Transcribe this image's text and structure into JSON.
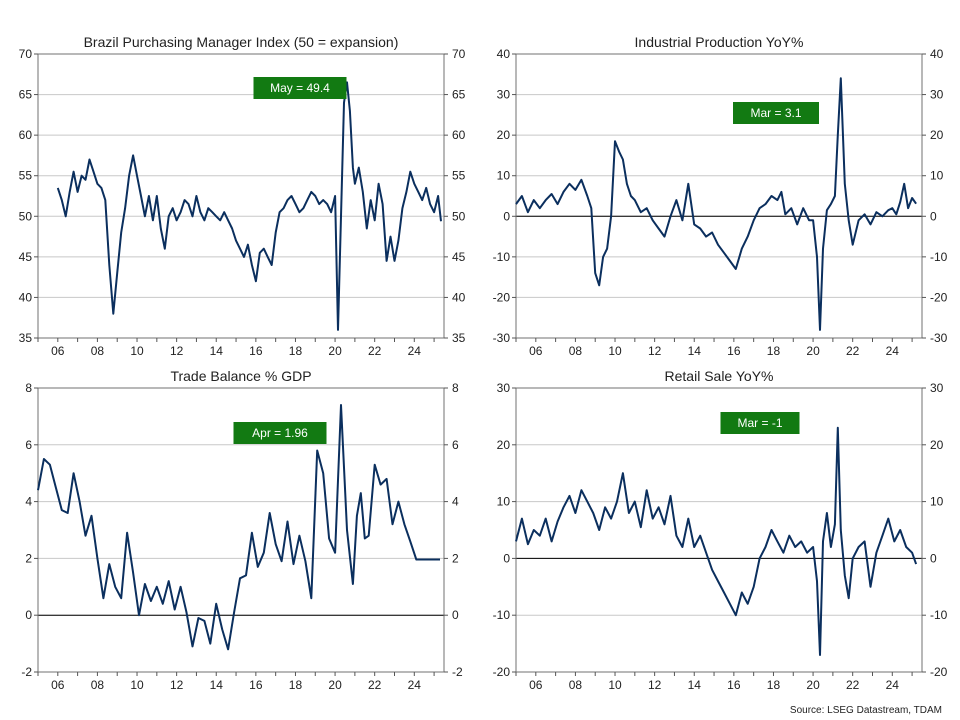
{
  "source": "Source: LSEG Datastream, TDAM",
  "style": {
    "line_color": "#0b2f5e",
    "grid_color": "#c8c8c8",
    "badge_color": "#127a12",
    "zero_line_color": "#000000"
  },
  "chart_data": [
    {
      "type": "line",
      "title": "Brazil Purchasing Manager Index (50 = expansion)",
      "x_ticks": [
        "06",
        "08",
        "10",
        "12",
        "14",
        "16",
        "18",
        "20",
        "22",
        "24"
      ],
      "x_range": [
        2005.0,
        2025.5
      ],
      "ylim": [
        35,
        70
      ],
      "y_ticks": [
        35,
        40,
        45,
        50,
        55,
        60,
        65,
        70
      ],
      "zero_line": false,
      "annotation": "May  = 49.4",
      "series": [
        {
          "x": [
            2006.0,
            2006.2,
            2006.4,
            2006.6,
            2006.8,
            2007.0,
            2007.2,
            2007.4,
            2007.6,
            2007.8,
            2008.0,
            2008.2,
            2008.4,
            2008.6,
            2008.8,
            2009.0,
            2009.2,
            2009.4,
            2009.6,
            2009.8,
            2010.0,
            2010.2,
            2010.4,
            2010.6,
            2010.8,
            2011.0,
            2011.2,
            2011.4,
            2011.6,
            2011.8,
            2012.0,
            2012.2,
            2012.4,
            2012.6,
            2012.8,
            2013.0,
            2013.2,
            2013.4,
            2013.6,
            2013.8,
            2014.0,
            2014.2,
            2014.4,
            2014.6,
            2014.8,
            2015.0,
            2015.2,
            2015.4,
            2015.6,
            2015.8,
            2016.0,
            2016.2,
            2016.4,
            2016.6,
            2016.8,
            2017.0,
            2017.2,
            2017.4,
            2017.6,
            2017.8,
            2018.0,
            2018.2,
            2018.4,
            2018.6,
            2018.8,
            2019.0,
            2019.2,
            2019.4,
            2019.6,
            2019.8,
            2020.0,
            2020.15,
            2020.3,
            2020.45,
            2020.6,
            2020.75,
            2020.9,
            2021.0,
            2021.2,
            2021.4,
            2021.6,
            2021.8,
            2022.0,
            2022.2,
            2022.4,
            2022.6,
            2022.8,
            2023.0,
            2023.2,
            2023.4,
            2023.6,
            2023.8,
            2024.0,
            2024.2,
            2024.4,
            2024.6,
            2024.8,
            2025.0,
            2025.2,
            2025.35
          ],
          "values": [
            53.5,
            52.0,
            50.0,
            53.0,
            55.5,
            53.0,
            55.0,
            54.5,
            57.0,
            55.5,
            54.0,
            53.5,
            52.0,
            44.0,
            38.0,
            43.0,
            48.0,
            51.0,
            55.0,
            57.5,
            55.0,
            52.5,
            50.0,
            52.5,
            49.5,
            52.5,
            48.5,
            46.0,
            50.0,
            51.0,
            49.5,
            50.5,
            52.0,
            51.5,
            50.0,
            52.5,
            50.5,
            49.5,
            51.0,
            50.5,
            50.0,
            49.5,
            50.5,
            49.5,
            48.5,
            47.0,
            46.0,
            45.0,
            46.5,
            44.0,
            42.0,
            45.5,
            46.0,
            45.0,
            44.0,
            48.0,
            50.5,
            51.0,
            52.0,
            52.5,
            51.5,
            50.5,
            51.0,
            52.0,
            53.0,
            52.5,
            51.5,
            52.0,
            51.5,
            50.5,
            52.5,
            36.0,
            50.0,
            64.0,
            66.5,
            63.0,
            56.0,
            54.0,
            56.0,
            53.0,
            48.5,
            52.0,
            49.5,
            54.0,
            51.5,
            44.5,
            47.5,
            44.5,
            47.0,
            51.0,
            53.0,
            55.5,
            54.0,
            53.0,
            52.0,
            53.5,
            51.5,
            50.5,
            52.5,
            49.4
          ]
        }
      ]
    },
    {
      "type": "line",
      "title": "Industrial Production YoY%",
      "x_ticks": [
        "06",
        "08",
        "10",
        "12",
        "14",
        "16",
        "18",
        "20",
        "22",
        "24"
      ],
      "x_range": [
        2005.0,
        2025.5
      ],
      "ylim": [
        -30,
        40
      ],
      "y_ticks": [
        -30,
        -20,
        -10,
        0,
        10,
        20,
        30,
        40
      ],
      "zero_line": true,
      "annotation": "Mar  = 3.1",
      "series": [
        {
          "x": [
            2005.0,
            2005.3,
            2005.6,
            2005.9,
            2006.2,
            2006.5,
            2006.8,
            2007.1,
            2007.4,
            2007.7,
            2008.0,
            2008.3,
            2008.6,
            2008.8,
            2009.0,
            2009.2,
            2009.4,
            2009.6,
            2009.8,
            2010.0,
            2010.2,
            2010.4,
            2010.6,
            2010.8,
            2011.0,
            2011.3,
            2011.6,
            2011.9,
            2012.2,
            2012.5,
            2012.8,
            2013.1,
            2013.4,
            2013.7,
            2014.0,
            2014.3,
            2014.6,
            2014.9,
            2015.2,
            2015.5,
            2015.8,
            2016.1,
            2016.4,
            2016.7,
            2017.0,
            2017.3,
            2017.6,
            2017.9,
            2018.2,
            2018.4,
            2018.6,
            2018.9,
            2019.2,
            2019.5,
            2019.8,
            2020.0,
            2020.2,
            2020.35,
            2020.5,
            2020.7,
            2020.9,
            2021.1,
            2021.25,
            2021.4,
            2021.6,
            2021.8,
            2022.0,
            2022.3,
            2022.6,
            2022.9,
            2023.2,
            2023.5,
            2023.8,
            2024.0,
            2024.2,
            2024.4,
            2024.6,
            2024.8,
            2025.0,
            2025.2
          ],
          "values": [
            3.0,
            5.0,
            1.0,
            4.0,
            2.0,
            4.0,
            5.5,
            3.0,
            6.0,
            8.0,
            6.5,
            9.0,
            5.0,
            2.0,
            -14.0,
            -17.0,
            -10.0,
            -8.0,
            0.0,
            18.5,
            16.0,
            14.0,
            8.0,
            5.0,
            4.0,
            1.0,
            2.0,
            -1.0,
            -3.0,
            -5.0,
            0.0,
            4.0,
            -1.0,
            8.0,
            -2.0,
            -3.0,
            -5.0,
            -4.0,
            -7.0,
            -9.0,
            -11.0,
            -13.0,
            -8.0,
            -5.0,
            -1.0,
            2.0,
            3.0,
            5.0,
            4.0,
            6.0,
            0.5,
            2.0,
            -2.0,
            2.0,
            -1.0,
            -1.0,
            -10.0,
            -28.0,
            -8.0,
            1.5,
            3.0,
            5.0,
            20.0,
            34.0,
            8.0,
            -1.0,
            -7.0,
            -1.0,
            0.5,
            -2.0,
            1.0,
            0.0,
            1.5,
            2.0,
            0.5,
            3.5,
            8.0,
            2.0,
            4.5,
            3.1
          ]
        }
      ]
    },
    {
      "type": "line",
      "title": "Trade Balance % GDP",
      "x_ticks": [
        "06",
        "08",
        "10",
        "12",
        "14",
        "16",
        "18",
        "20",
        "22",
        "24"
      ],
      "x_range": [
        2005.0,
        2025.5
      ],
      "ylim": [
        -2,
        8
      ],
      "y_ticks": [
        -2,
        0,
        2,
        4,
        6,
        8
      ],
      "zero_line": true,
      "annotation": "Apr  = 1.96",
      "series": [
        {
          "x": [
            2005.0,
            2005.3,
            2005.6,
            2005.9,
            2006.2,
            2006.5,
            2006.8,
            2007.1,
            2007.4,
            2007.7,
            2008.0,
            2008.3,
            2008.6,
            2008.9,
            2009.2,
            2009.5,
            2009.8,
            2010.1,
            2010.4,
            2010.7,
            2011.0,
            2011.3,
            2011.6,
            2011.9,
            2012.2,
            2012.5,
            2012.8,
            2013.1,
            2013.4,
            2013.7,
            2014.0,
            2014.3,
            2014.6,
            2014.9,
            2015.2,
            2015.5,
            2015.8,
            2016.1,
            2016.4,
            2016.7,
            2017.0,
            2017.3,
            2017.6,
            2017.9,
            2018.2,
            2018.5,
            2018.8,
            2019.1,
            2019.4,
            2019.7,
            2020.0,
            2020.3,
            2020.6,
            2020.9,
            2021.1,
            2021.3,
            2021.5,
            2021.7,
            2022.0,
            2022.3,
            2022.6,
            2022.9,
            2023.2,
            2023.5,
            2023.8,
            2024.1,
            2024.4,
            2024.7,
            2025.0,
            2025.3
          ],
          "values": [
            4.4,
            5.5,
            5.3,
            4.5,
            3.7,
            3.6,
            5.0,
            4.0,
            2.8,
            3.5,
            2.0,
            0.6,
            1.8,
            1.0,
            0.6,
            2.9,
            1.5,
            0.0,
            1.1,
            0.5,
            1.0,
            0.4,
            1.2,
            0.2,
            1.0,
            0.1,
            -1.1,
            -0.1,
            -0.2,
            -1.0,
            0.4,
            -0.5,
            -1.2,
            0.1,
            1.3,
            1.4,
            2.9,
            1.7,
            2.2,
            3.6,
            2.5,
            1.9,
            3.3,
            1.8,
            2.8,
            1.9,
            0.6,
            5.8,
            5.0,
            2.7,
            2.2,
            7.4,
            3.0,
            1.1,
            3.5,
            4.3,
            2.7,
            2.8,
            5.3,
            4.6,
            4.8,
            3.2,
            4.0,
            3.2,
            2.6,
            1.96,
            1.96,
            1.96,
            1.96,
            1.96
          ]
        }
      ]
    },
    {
      "type": "line",
      "title": "Retail Sale YoY%",
      "x_ticks": [
        "06",
        "08",
        "10",
        "12",
        "14",
        "16",
        "18",
        "20",
        "22",
        "24"
      ],
      "x_range": [
        2005.0,
        2025.5
      ],
      "ylim": [
        -20,
        30
      ],
      "y_ticks": [
        -20,
        -10,
        0,
        10,
        20,
        30
      ],
      "zero_line": true,
      "annotation": "Mar  = -1",
      "series": [
        {
          "x": [
            2005.0,
            2005.3,
            2005.6,
            2005.9,
            2006.2,
            2006.5,
            2006.8,
            2007.1,
            2007.4,
            2007.7,
            2008.0,
            2008.3,
            2008.6,
            2008.9,
            2009.2,
            2009.5,
            2009.8,
            2010.1,
            2010.4,
            2010.7,
            2011.0,
            2011.3,
            2011.6,
            2011.9,
            2012.2,
            2012.5,
            2012.8,
            2013.1,
            2013.4,
            2013.7,
            2014.0,
            2014.3,
            2014.6,
            2014.9,
            2015.2,
            2015.5,
            2015.8,
            2016.1,
            2016.4,
            2016.7,
            2017.0,
            2017.3,
            2017.6,
            2017.9,
            2018.2,
            2018.5,
            2018.8,
            2019.1,
            2019.4,
            2019.7,
            2020.0,
            2020.2,
            2020.35,
            2020.5,
            2020.7,
            2020.9,
            2021.1,
            2021.25,
            2021.4,
            2021.6,
            2021.8,
            2022.0,
            2022.3,
            2022.6,
            2022.9,
            2023.2,
            2023.5,
            2023.8,
            2024.1,
            2024.4,
            2024.7,
            2025.0,
            2025.2
          ],
          "values": [
            3.0,
            7.0,
            2.5,
            5.0,
            4.0,
            7.0,
            3.0,
            6.5,
            9.0,
            11.0,
            8.0,
            12.0,
            10.0,
            8.0,
            5.0,
            9.0,
            7.0,
            10.0,
            15.0,
            8.0,
            10.0,
            5.5,
            12.0,
            7.0,
            9.0,
            6.0,
            11.0,
            4.0,
            2.0,
            7.0,
            2.0,
            4.0,
            1.0,
            -2.0,
            -4.0,
            -6.0,
            -8.0,
            -10.0,
            -6.0,
            -8.0,
            -5.0,
            0.0,
            2.0,
            5.0,
            3.0,
            1.0,
            4.0,
            2.0,
            3.0,
            1.0,
            2.0,
            -4.0,
            -17.0,
            3.0,
            8.0,
            2.0,
            6.0,
            23.0,
            5.0,
            -3.0,
            -7.0,
            0.0,
            2.0,
            3.0,
            -5.0,
            1.0,
            4.0,
            7.0,
            3.0,
            5.0,
            2.0,
            1.0,
            -1.0
          ]
        }
      ]
    }
  ]
}
